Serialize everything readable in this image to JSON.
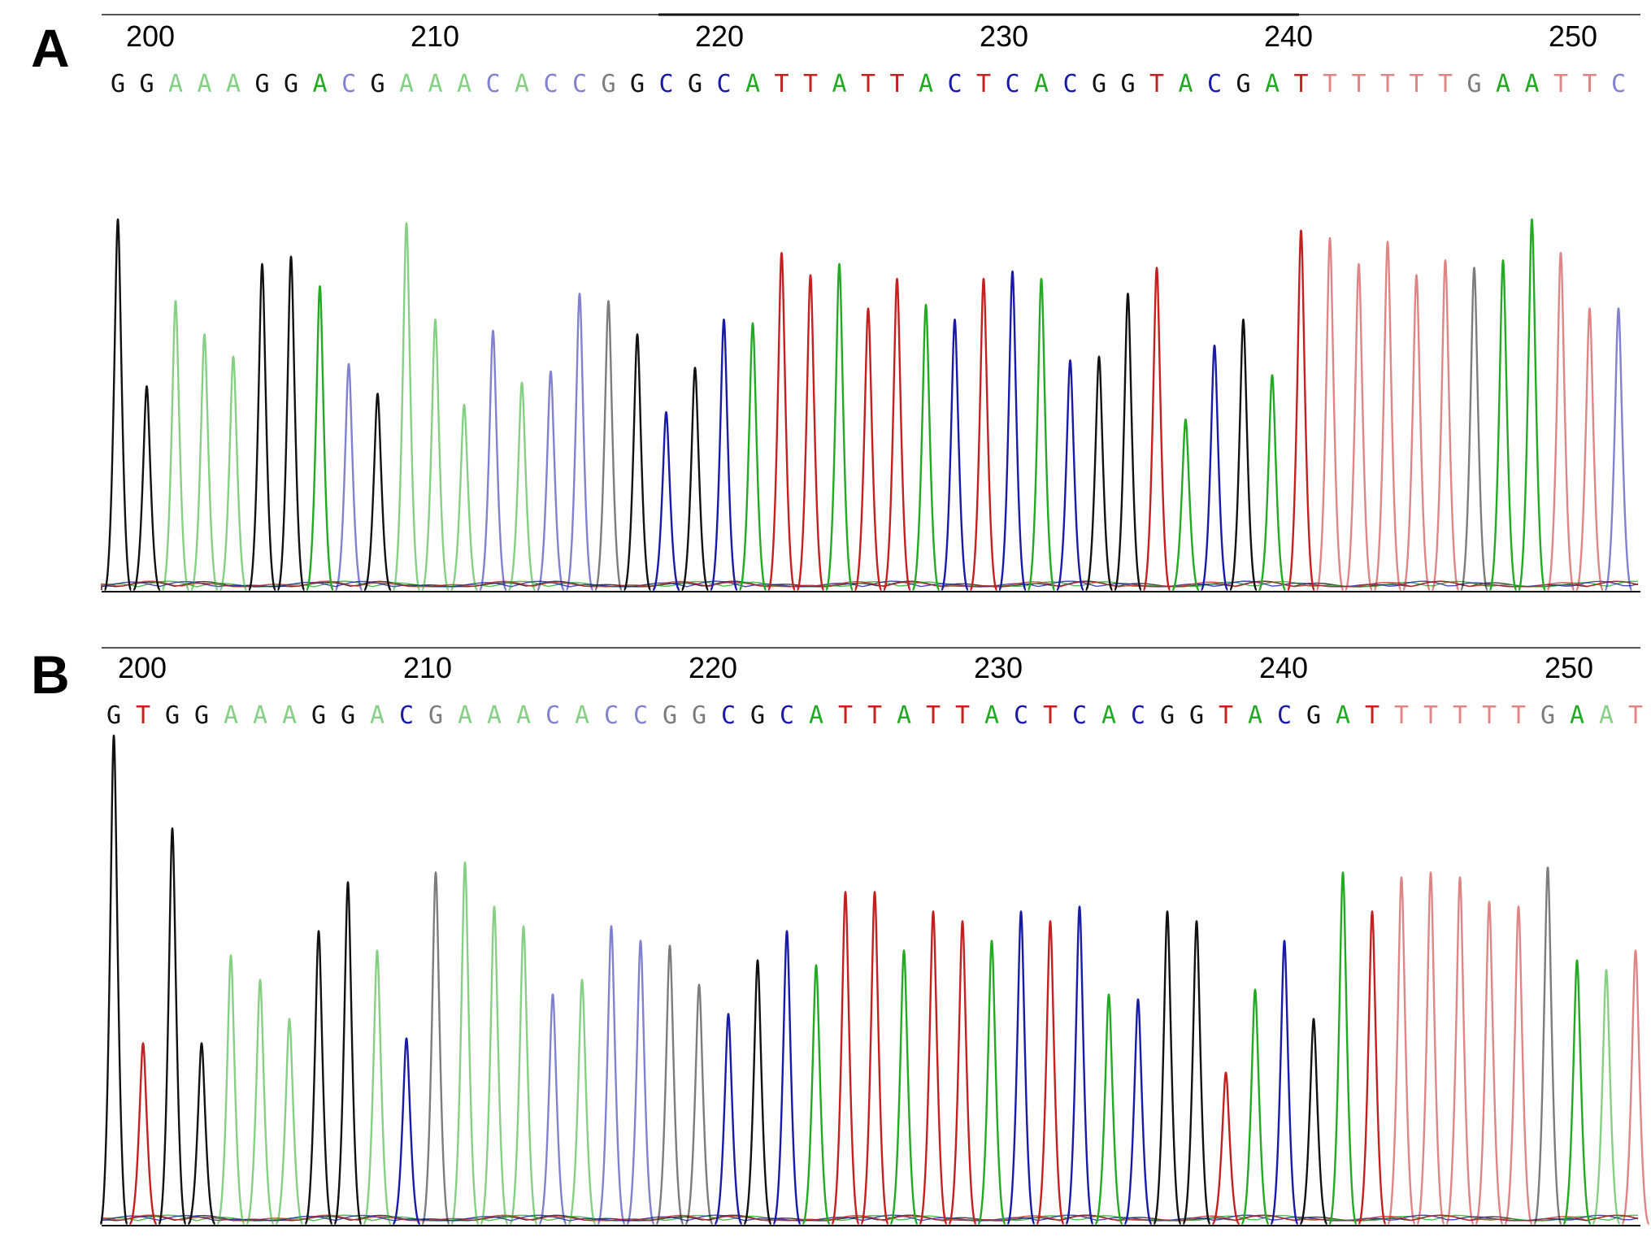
{
  "colors": {
    "G": "#111111",
    "A": "#22aa22",
    "C": "#1a1aa8",
    "T": "#c42020"
  },
  "chart_data": [
    {
      "type": "chromatogram",
      "panel_label": "A",
      "position_ticks": [
        "200",
        "210",
        "220",
        "230",
        "240",
        "250"
      ],
      "sequence": "GGAAAGGACGAAACACCGGCGCATTATTACTCACGGTACGATTTTTTGAATTC",
      "peak_heights": [
        1.0,
        0.55,
        0.78,
        0.69,
        0.63,
        0.88,
        0.9,
        0.82,
        0.61,
        0.53,
        0.99,
        0.73,
        0.5,
        0.7,
        0.56,
        0.59,
        0.8,
        0.78,
        0.69,
        0.48,
        0.6,
        0.73,
        0.72,
        0.91,
        0.85,
        0.88,
        0.76,
        0.84,
        0.77,
        0.73,
        0.84,
        0.86,
        0.84,
        0.62,
        0.63,
        0.8,
        0.87,
        0.46,
        0.66,
        0.73,
        0.58,
        0.97,
        0.95,
        0.88,
        0.94,
        0.85,
        0.89,
        0.87,
        0.89,
        1.0,
        0.91,
        0.76,
        0.76
      ],
      "faded_bases": [
        2,
        3,
        4,
        8,
        10,
        11,
        12,
        13,
        14,
        15,
        16,
        17,
        42,
        43,
        44,
        45,
        46,
        47,
        50,
        51,
        52
      ]
    },
    {
      "type": "chromatogram",
      "panel_label": "B",
      "position_ticks": [
        "200",
        "210",
        "220",
        "230",
        "240",
        "250"
      ],
      "sequence": "GTGGAAAGGACGAAACACCGGCGCATTATTACTCACGGTACGATTTTTTGAAT",
      "peak_heights": [
        1.0,
        0.37,
        0.81,
        0.37,
        0.55,
        0.5,
        0.42,
        0.6,
        0.7,
        0.56,
        0.38,
        0.72,
        0.74,
        0.65,
        0.61,
        0.47,
        0.5,
        0.61,
        0.58,
        0.57,
        0.49,
        0.43,
        0.54,
        0.6,
        0.53,
        0.68,
        0.68,
        0.56,
        0.64,
        0.62,
        0.58,
        0.64,
        0.62,
        0.65,
        0.47,
        0.46,
        0.64,
        0.62,
        0.31,
        0.48,
        0.58,
        0.42,
        0.72,
        0.64,
        0.71,
        0.72,
        0.71,
        0.66,
        0.65,
        0.73,
        0.54,
        0.52,
        0.56
      ],
      "faded_bases": [
        4,
        5,
        6,
        9,
        11,
        12,
        13,
        14,
        15,
        16,
        17,
        18,
        19,
        20,
        44,
        45,
        46,
        47,
        48,
        49,
        51,
        52
      ]
    }
  ]
}
